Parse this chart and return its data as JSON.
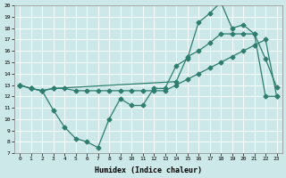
{
  "title": "",
  "xlabel": "Humidex (Indice chaleur)",
  "bg_color": "#cde8e8",
  "line_color": "#2e7d6e",
  "grid_color": "#b0d8d8",
  "xlim": [
    -0.5,
    23.5
  ],
  "ylim": [
    7,
    20
  ],
  "xticks": [
    0,
    1,
    2,
    3,
    4,
    5,
    6,
    7,
    8,
    9,
    10,
    11,
    12,
    13,
    14,
    15,
    16,
    17,
    18,
    19,
    20,
    21,
    22,
    23
  ],
  "yticks": [
    7,
    8,
    9,
    10,
    11,
    12,
    13,
    14,
    15,
    16,
    17,
    18,
    19,
    20
  ],
  "line1_x": [
    0,
    1,
    2,
    3,
    14,
    15,
    16,
    17,
    18,
    19,
    20,
    21,
    22,
    23
  ],
  "line1_y": [
    13,
    12.7,
    12.5,
    12.7,
    13.3,
    15.5,
    16.0,
    16.7,
    17.5,
    17.5,
    17.5,
    17.5,
    12.0,
    12.0
  ],
  "line2_x": [
    0,
    1,
    2,
    3,
    4,
    5,
    6,
    7,
    8,
    9,
    10,
    11,
    12,
    13,
    14,
    15,
    16,
    17,
    18,
    19,
    20,
    21,
    22,
    23
  ],
  "line2_y": [
    13,
    12.7,
    12.5,
    10.8,
    9.3,
    8.3,
    8.0,
    7.5,
    10.0,
    11.8,
    11.2,
    11.2,
    12.7,
    12.7,
    14.7,
    15.3,
    18.5,
    19.3,
    20.3,
    18.0,
    18.3,
    17.5,
    15.3,
    12.8
  ],
  "line3_x": [
    0,
    1,
    2,
    3,
    4,
    5,
    6,
    7,
    8,
    9,
    10,
    11,
    12,
    13,
    14,
    15,
    16,
    17,
    18,
    19,
    20,
    21,
    22,
    23
  ],
  "line3_y": [
    13,
    12.7,
    12.5,
    12.7,
    12.7,
    12.5,
    12.5,
    12.5,
    12.5,
    12.5,
    12.5,
    12.5,
    12.5,
    12.5,
    13.0,
    13.5,
    14.0,
    14.5,
    15.0,
    15.5,
    16.0,
    16.5,
    17.0,
    12.0
  ],
  "marker": "D",
  "markersize": 2.5,
  "linewidth": 0.9
}
